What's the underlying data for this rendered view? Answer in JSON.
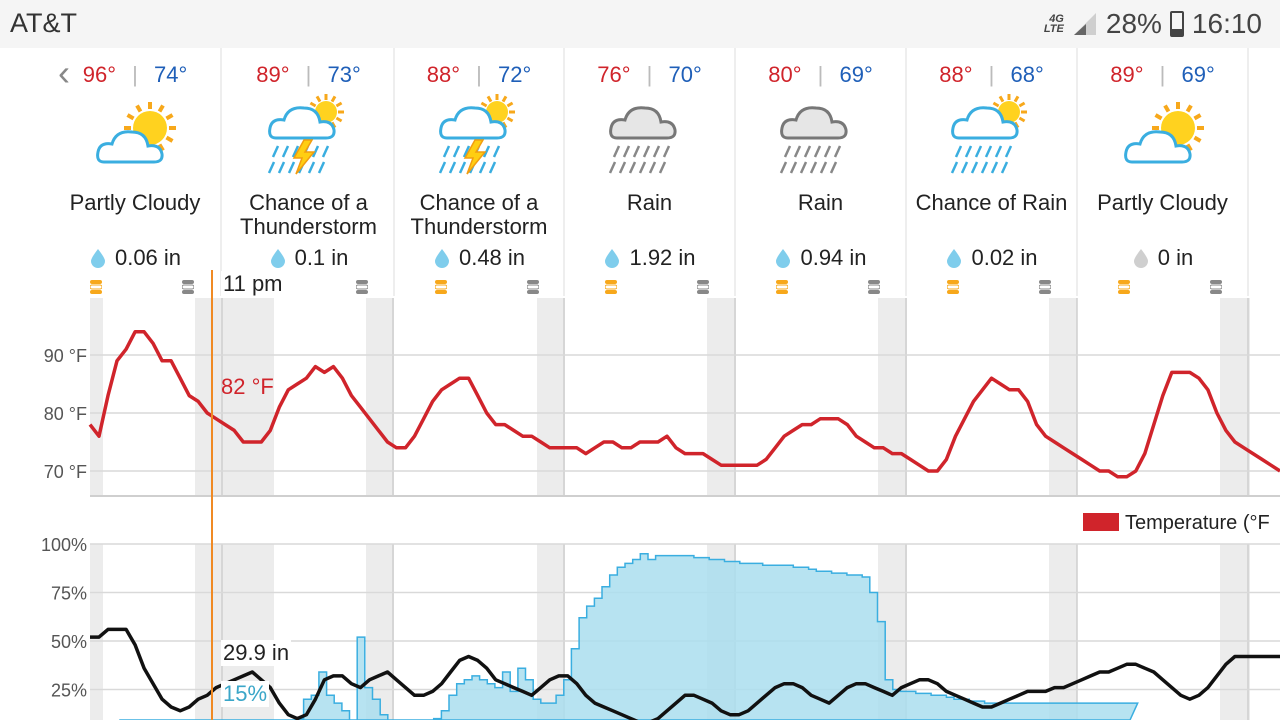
{
  "status_bar": {
    "carrier": "AT&T",
    "network_label_top": "4G",
    "network_label_bottom": "LTE",
    "battery": "28%",
    "battery_level": 0.28,
    "time": "16:10"
  },
  "forecast": {
    "days": [
      {
        "high": "96°",
        "low": "74°",
        "condition": "Partly Cloudy",
        "precip": "0.06 in",
        "icon": "partly-cloudy-icon",
        "drop": "blue"
      },
      {
        "high": "89°",
        "low": "73°",
        "condition": "Chance of a Thunderstorm",
        "precip": "0.1 in",
        "icon": "thunderstorm-icon",
        "drop": "blue"
      },
      {
        "high": "88°",
        "low": "72°",
        "condition": "Chance of a Thunderstorm",
        "precip": "0.48 in",
        "icon": "thunderstorm-icon",
        "drop": "blue"
      },
      {
        "high": "76°",
        "low": "70°",
        "condition": "Rain",
        "precip": "1.92 in",
        "icon": "rain-icon",
        "drop": "blue"
      },
      {
        "high": "80°",
        "low": "69°",
        "condition": "Rain",
        "precip": "0.94 in",
        "icon": "rain-icon",
        "drop": "blue"
      },
      {
        "high": "88°",
        "low": "68°",
        "condition": "Chance of Rain",
        "precip": "0.02 in",
        "icon": "chance-rain-icon",
        "drop": "blue"
      },
      {
        "high": "89°",
        "low": "69°",
        "condition": "Partly Cloudy",
        "precip": "0 in",
        "icon": "partly-cloudy-icon",
        "drop": "gray"
      }
    ]
  },
  "hover": {
    "time": "11 pm",
    "temperature": "82 °F",
    "pressure": "29.9 in",
    "precip_chance": "15%"
  },
  "legend": {
    "temperature": "Temperature (°F"
  },
  "colors": {
    "temperature": "#d0242b",
    "precip": "#aadeee",
    "pressure": "#111111",
    "hover": "#f08a24",
    "high": "#d0242b",
    "low": "#1f5fb8"
  },
  "chart_data": [
    {
      "type": "line",
      "ylabel": "",
      "yticks": [
        "90 °F",
        "80 °F",
        "70 °F"
      ],
      "ylim": [
        64,
        101
      ],
      "series": [
        {
          "name": "Temperature (°F",
          "values": [
            78,
            76,
            83,
            89,
            91,
            94,
            94,
            92,
            89,
            89,
            86,
            83,
            82,
            80,
            79,
            78,
            77,
            75,
            75,
            75,
            77,
            81,
            84,
            85,
            86,
            88,
            87,
            88,
            86,
            83,
            81,
            79,
            77,
            75,
            74,
            74,
            76,
            79,
            82,
            84,
            85,
            86,
            86,
            83,
            80,
            78,
            78,
            77,
            76,
            76,
            75,
            74,
            74,
            74,
            74,
            73,
            74,
            75,
            75,
            74,
            74,
            75,
            75,
            75,
            76,
            74,
            73,
            73,
            73,
            72,
            71,
            71,
            71,
            71,
            71,
            72,
            74,
            76,
            77,
            78,
            78,
            79,
            79,
            79,
            78,
            76,
            75,
            74,
            74,
            73,
            73,
            72,
            71,
            70,
            70,
            72,
            76,
            79,
            82,
            84,
            86,
            85,
            84,
            84,
            82,
            78,
            76,
            75,
            74,
            73,
            72,
            71,
            70,
            70,
            69,
            69,
            70,
            73,
            78,
            83,
            87,
            87,
            87,
            86,
            84,
            80,
            77,
            75,
            74,
            73,
            72,
            71,
            70
          ]
        }
      ],
      "grid": true
    },
    {
      "type": "area",
      "yticks": [
        "100%",
        "75%",
        "50%",
        "25%"
      ],
      "ylim": [
        0,
        100
      ],
      "series": [
        {
          "name": "precip_chance",
          "values": [
            0,
            0,
            0,
            0,
            4,
            4,
            4,
            4,
            4,
            4,
            4,
            4,
            4,
            4,
            4,
            4,
            4,
            4,
            4,
            4,
            0,
            2,
            4,
            10,
            20,
            22,
            34,
            22,
            18,
            14,
            8,
            52,
            26,
            20,
            12,
            6,
            2,
            4,
            2,
            4,
            6,
            10,
            14,
            22,
            28,
            30,
            32,
            30,
            28,
            26,
            34,
            24,
            36,
            30,
            20,
            18,
            18,
            22,
            30,
            46,
            62,
            68,
            72,
            78,
            84,
            88,
            90,
            92,
            95,
            92,
            94,
            94,
            94,
            94,
            94,
            93,
            93,
            92,
            92,
            91,
            91,
            90,
            90,
            90,
            89,
            89,
            89,
            89,
            88,
            88,
            87,
            86,
            86,
            85,
            85,
            84,
            84,
            83,
            75,
            60,
            30,
            25,
            24,
            24,
            23,
            23,
            22,
            22,
            21,
            20,
            20,
            19,
            19,
            18,
            18,
            18,
            18,
            18,
            18,
            18,
            18,
            18,
            18,
            18,
            18,
            18,
            18,
            18,
            18,
            18,
            18,
            18,
            18
          ]
        },
        {
          "name": "pressure",
          "values": [
            52,
            52,
            56,
            56,
            56,
            48,
            36,
            28,
            20,
            16,
            14,
            16,
            20,
            22,
            26,
            28,
            30,
            32,
            34,
            30,
            26,
            18,
            12,
            10,
            12,
            20,
            30,
            32,
            32,
            28,
            26,
            30,
            32,
            34,
            30,
            26,
            22,
            22,
            24,
            28,
            34,
            40,
            42,
            40,
            36,
            30,
            28,
            26,
            24,
            22,
            26,
            30,
            32,
            32,
            28,
            22,
            18,
            16,
            14,
            12,
            10,
            8,
            8,
            10,
            14,
            18,
            22,
            22,
            20,
            18,
            14,
            12,
            12,
            14,
            18,
            22,
            26,
            28,
            28,
            26,
            22,
            20,
            18,
            22,
            26,
            28,
            28,
            26,
            24,
            22,
            26,
            28,
            30,
            30,
            28,
            24,
            22,
            20,
            18,
            16,
            16,
            18,
            20,
            22,
            24,
            24,
            24,
            26,
            26,
            28,
            30,
            32,
            34,
            34,
            36,
            38,
            38,
            36,
            34,
            30,
            26,
            22,
            20,
            22,
            26,
            32,
            38,
            42,
            42,
            42,
            42,
            42,
            42
          ]
        }
      ],
      "grid": true
    }
  ]
}
